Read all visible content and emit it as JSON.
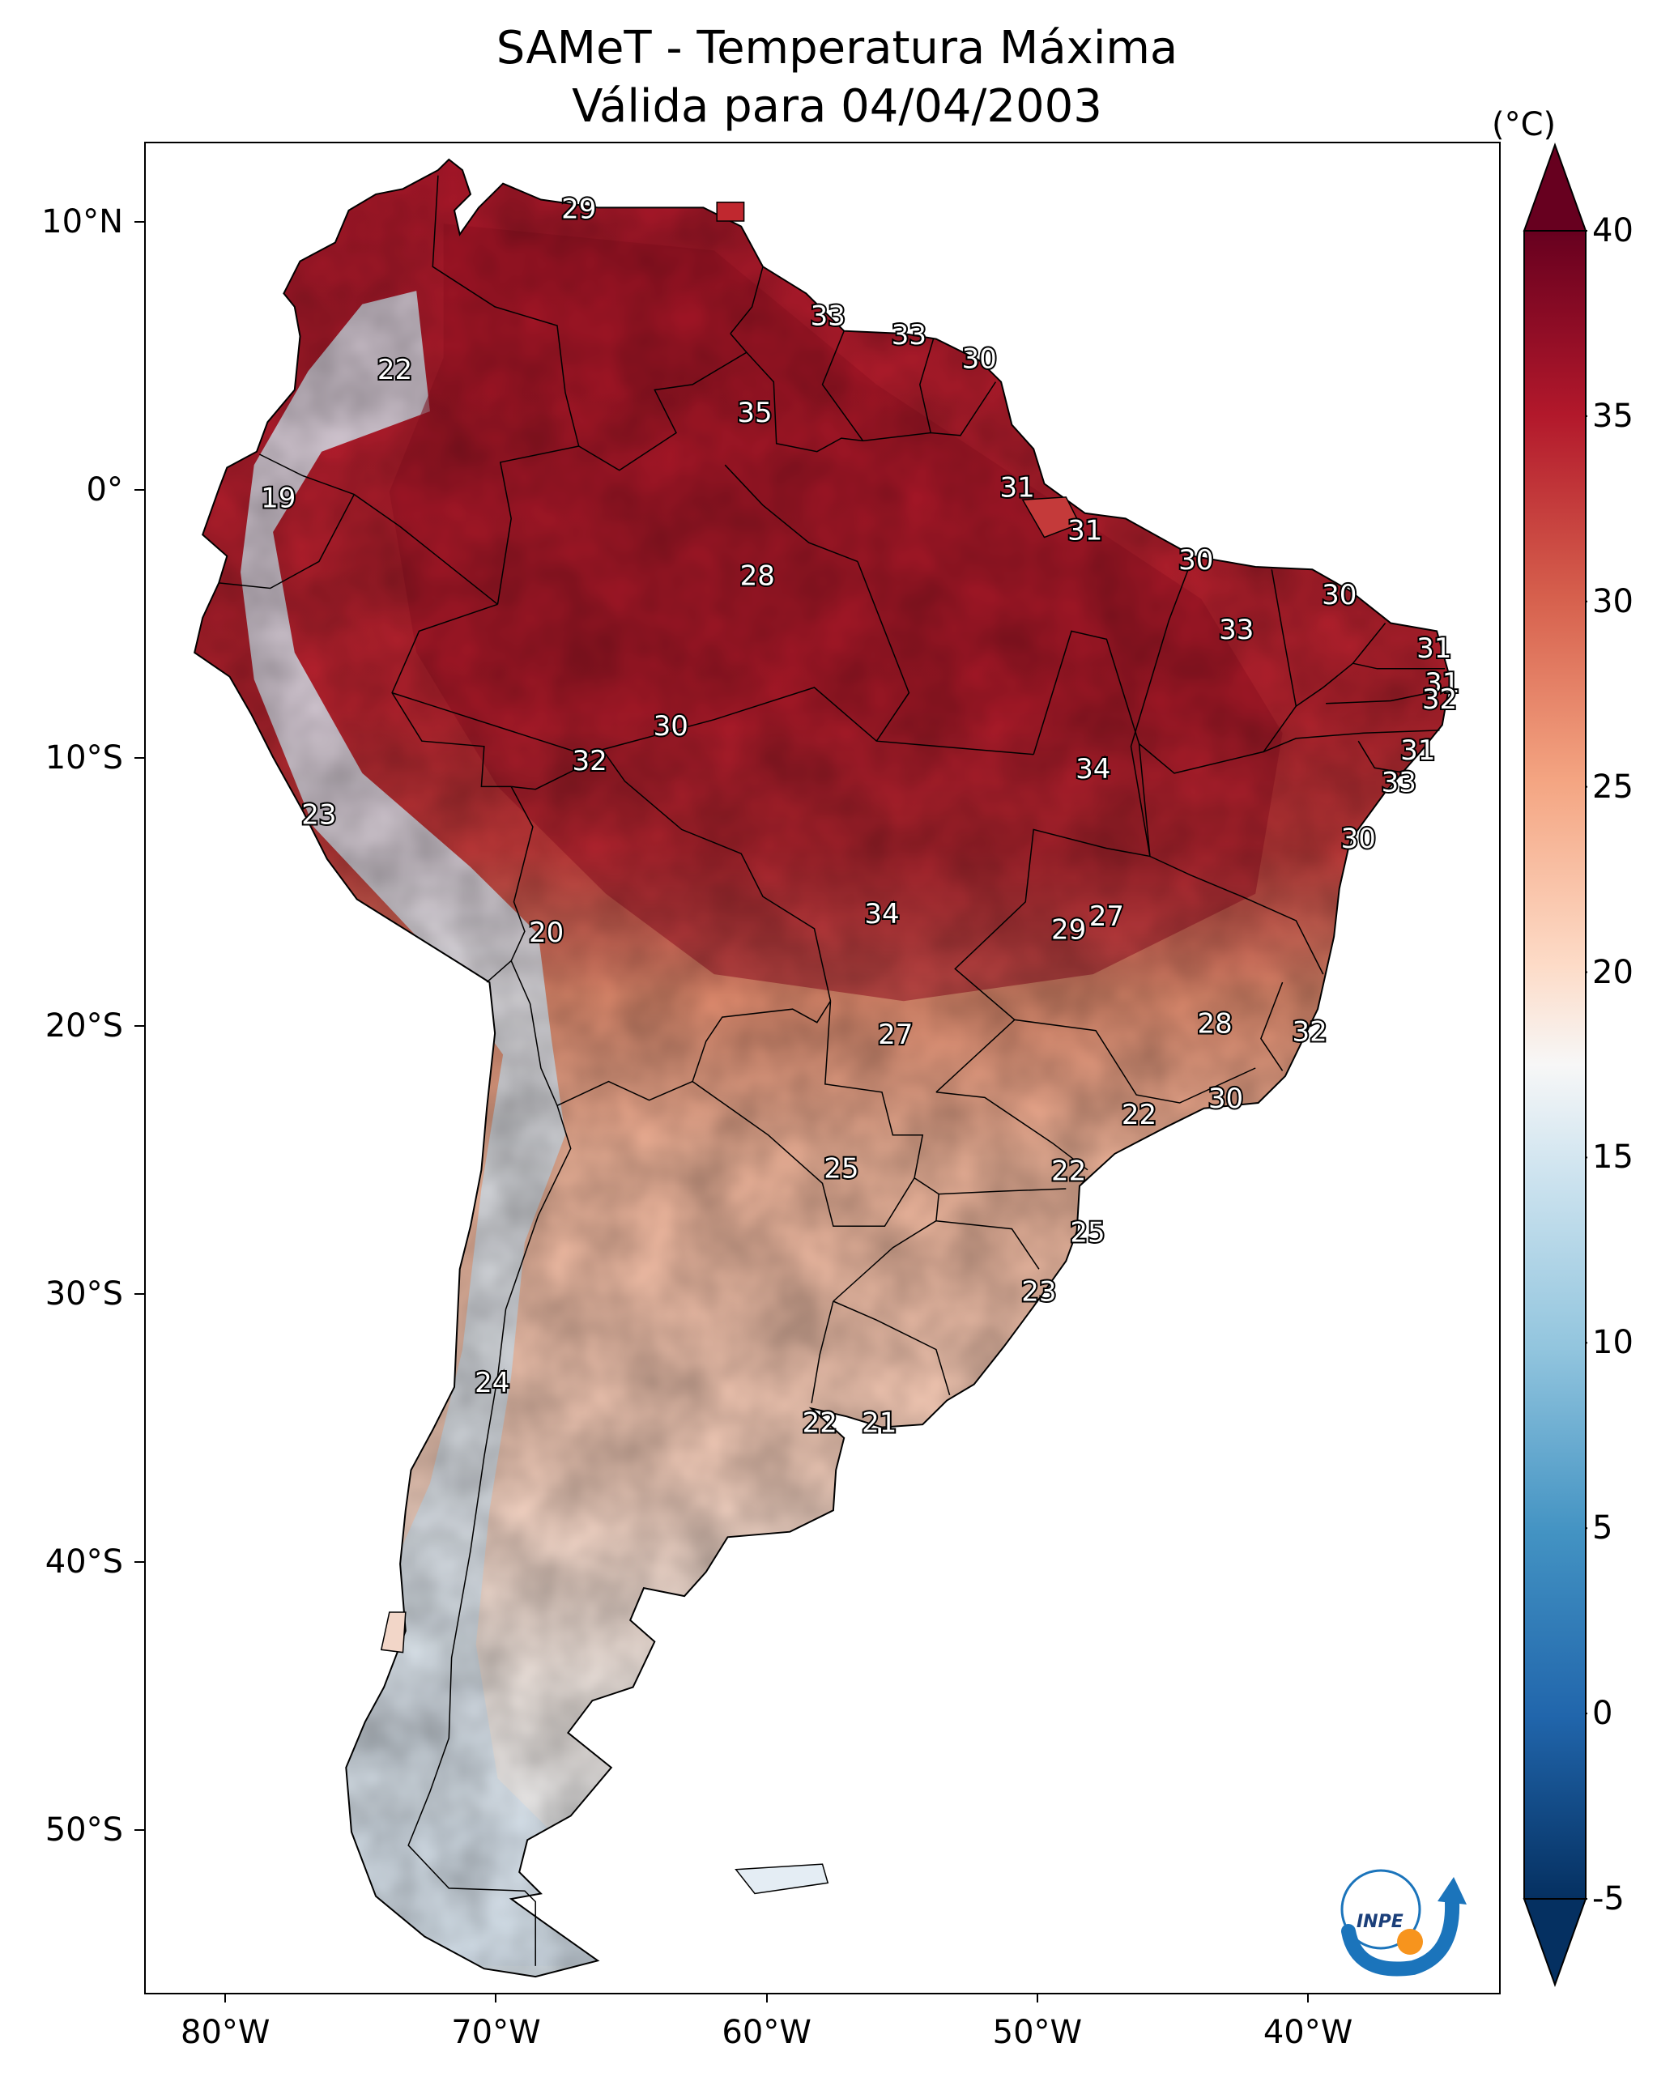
{
  "title": {
    "line1": "SAMeT - Temperatura Máxima",
    "line2": "Válida para 04/04/2003"
  },
  "map_extent": {
    "lon_min": -83,
    "lon_max": -33,
    "lat_min": -56,
    "lat_max": 13
  },
  "axes": {
    "lat_ticks": [
      {
        "value": 10,
        "label": "10°N"
      },
      {
        "value": 0,
        "label": "0°"
      },
      {
        "value": -10,
        "label": "10°S"
      },
      {
        "value": -20,
        "label": "20°S"
      },
      {
        "value": -30,
        "label": "30°S"
      },
      {
        "value": -40,
        "label": "40°S"
      },
      {
        "value": -50,
        "label": "50°S"
      }
    ],
    "lon_ticks": [
      {
        "value": -80,
        "label": "80°W"
      },
      {
        "value": -70,
        "label": "70°W"
      },
      {
        "value": -60,
        "label": "60°W"
      },
      {
        "value": -50,
        "label": "50°W"
      },
      {
        "value": -40,
        "label": "40°W"
      }
    ]
  },
  "colorbar": {
    "unit": "(°C)",
    "min": -5,
    "max": 40,
    "extend": "both",
    "ticks": [
      {
        "value": 40,
        "label": "40"
      },
      {
        "value": 35,
        "label": "35"
      },
      {
        "value": 30,
        "label": "30"
      },
      {
        "value": 25,
        "label": "25"
      },
      {
        "value": 20,
        "label": "20"
      },
      {
        "value": 15,
        "label": "15"
      },
      {
        "value": 10,
        "label": "10"
      },
      {
        "value": 5,
        "label": "5"
      },
      {
        "value": 0,
        "label": "0"
      },
      {
        "value": -5,
        "label": "-5"
      }
    ],
    "colors": [
      "#053061",
      "#2166ac",
      "#4393c3",
      "#92c5de",
      "#d1e5f0",
      "#f7f7f7",
      "#fddbc7",
      "#f4a582",
      "#d6604d",
      "#b2182b",
      "#67001f"
    ]
  },
  "contour_labels": [
    {
      "text": "29",
      "lon": -67,
      "lat": 10.5
    },
    {
      "text": "33",
      "lon": -57.8,
      "lat": 6.5
    },
    {
      "text": "33",
      "lon": -54.8,
      "lat": 5.8
    },
    {
      "text": "30",
      "lon": -52.2,
      "lat": 4.9
    },
    {
      "text": "22",
      "lon": -73.8,
      "lat": 4.5
    },
    {
      "text": "35",
      "lon": -60.5,
      "lat": 2.9
    },
    {
      "text": "31",
      "lon": -50.8,
      "lat": 0.1
    },
    {
      "text": "19",
      "lon": -78.1,
      "lat": -0.3
    },
    {
      "text": "31",
      "lon": -48.3,
      "lat": -1.5
    },
    {
      "text": "30",
      "lon": -44.2,
      "lat": -2.6
    },
    {
      "text": "28",
      "lon": -60.4,
      "lat": -3.2
    },
    {
      "text": "30",
      "lon": -38.9,
      "lat": -3.9
    },
    {
      "text": "33",
      "lon": -42.7,
      "lat": -5.2
    },
    {
      "text": "31",
      "lon": -35.4,
      "lat": -5.9
    },
    {
      "text": "31",
      "lon": -35.1,
      "lat": -7.2
    },
    {
      "text": "32",
      "lon": -35.2,
      "lat": -7.8
    },
    {
      "text": "30",
      "lon": -63.6,
      "lat": -8.8
    },
    {
      "text": "32",
      "lon": -66.6,
      "lat": -10.1
    },
    {
      "text": "34",
      "lon": -48,
      "lat": -10.4
    },
    {
      "text": "31",
      "lon": -36,
      "lat": -9.7
    },
    {
      "text": "33",
      "lon": -36.7,
      "lat": -10.9
    },
    {
      "text": "23",
      "lon": -76.6,
      "lat": -12.1
    },
    {
      "text": "30",
      "lon": -38.2,
      "lat": -13
    },
    {
      "text": "27",
      "lon": -47.5,
      "lat": -15.9
    },
    {
      "text": "34",
      "lon": -55.8,
      "lat": -15.8
    },
    {
      "text": "29",
      "lon": -48.9,
      "lat": -16.4
    },
    {
      "text": "20",
      "lon": -68.2,
      "lat": -16.5
    },
    {
      "text": "28",
      "lon": -43.5,
      "lat": -19.9
    },
    {
      "text": "32",
      "lon": -40,
      "lat": -20.2
    },
    {
      "text": "27",
      "lon": -55.3,
      "lat": -20.3
    },
    {
      "text": "30",
      "lon": -43.1,
      "lat": -22.7
    },
    {
      "text": "22",
      "lon": -46.3,
      "lat": -23.3
    },
    {
      "text": "25",
      "lon": -57.3,
      "lat": -25.3
    },
    {
      "text": "22",
      "lon": -48.9,
      "lat": -25.4
    },
    {
      "text": "25",
      "lon": -48.2,
      "lat": -27.7
    },
    {
      "text": "23",
      "lon": -50,
      "lat": -29.9
    },
    {
      "text": "24",
      "lon": -70.2,
      "lat": -33.3
    },
    {
      "text": "22",
      "lon": -58.1,
      "lat": -34.8
    },
    {
      "text": "21",
      "lon": -55.9,
      "lat": -34.8
    }
  ],
  "logo": {
    "text": "INPE"
  }
}
